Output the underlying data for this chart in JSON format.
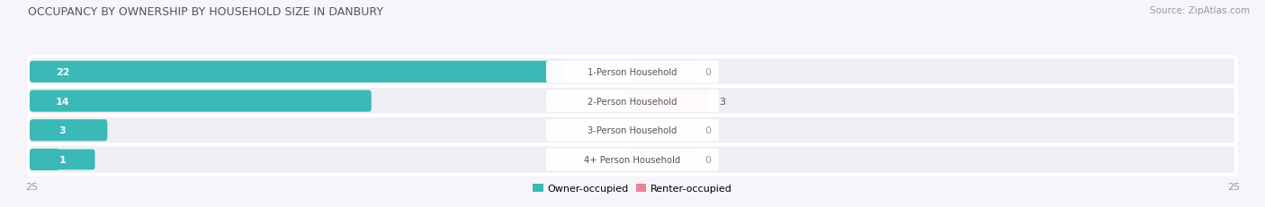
{
  "title": "OCCUPANCY BY OWNERSHIP BY HOUSEHOLD SIZE IN DANBURY",
  "source": "Source: ZipAtlas.com",
  "categories": [
    "1-Person Household",
    "2-Person Household",
    "3-Person Household",
    "4+ Person Household"
  ],
  "owner_values": [
    22,
    14,
    3,
    1
  ],
  "renter_values": [
    0,
    3,
    0,
    0
  ],
  "owner_color": "#3BB8B8",
  "renter_color": "#F08098",
  "renter_color_light": "#F4B8C8",
  "axis_max": 25,
  "row_bg_color": "#EEEEF4",
  "row_sep_color": "#FFFFFF",
  "background_color": "#F5F5FA",
  "legend_owner": "Owner-occupied",
  "legend_renter": "Renter-occupied"
}
